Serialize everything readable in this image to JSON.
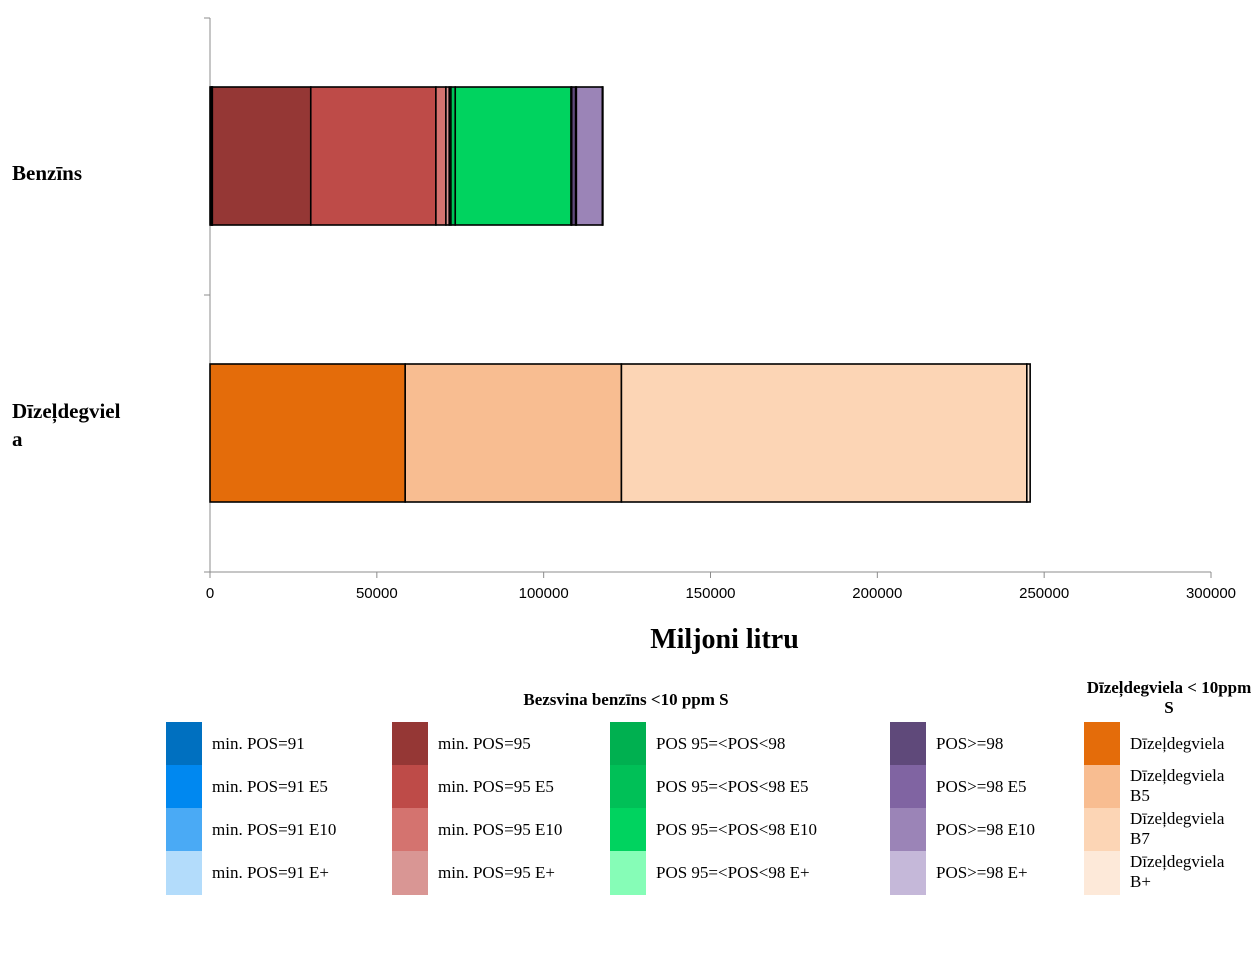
{
  "chart_data": {
    "type": "bar",
    "orientation": "horizontal",
    "stacked": true,
    "categories": [
      "Benzīns",
      "Dīzeļdegviela"
    ],
    "xlabel": "Miljoni litru",
    "xlim": [
      0,
      300000
    ],
    "xticks": [
      0,
      50000,
      100000,
      150000,
      200000,
      250000,
      300000
    ],
    "series": [
      {
        "name": "min. POS=91",
        "color": "#0070c0",
        "values": [
          300,
          0
        ]
      },
      {
        "name": "min. POS=91 E5",
        "color": "#0088f0",
        "values": [
          200,
          0
        ]
      },
      {
        "name": "min. POS=91 E10",
        "color": "#4aaaf5",
        "values": [
          100,
          0
        ]
      },
      {
        "name": "min. POS=91 E+",
        "color": "#b3dcfb",
        "values": [
          100,
          0
        ]
      },
      {
        "name": "min. POS=95",
        "color": "#953735",
        "values": [
          29500,
          0
        ]
      },
      {
        "name": "min. POS=95 E5",
        "color": "#be4b48",
        "values": [
          37500,
          0
        ]
      },
      {
        "name": "min. POS=95 E10",
        "color": "#d4736f",
        "values": [
          3000,
          0
        ]
      },
      {
        "name": "min. POS=95 E+",
        "color": "#d99694",
        "values": [
          1000,
          0
        ]
      },
      {
        "name": "POS 95=<POS<98",
        "color": "#00b050",
        "values": [
          500,
          0
        ]
      },
      {
        "name": "POS 95=<POS<98 E5",
        "color": "#00c057",
        "values": [
          1300,
          0
        ]
      },
      {
        "name": "POS 95=<POS<98 E10",
        "color": "#00d35f",
        "values": [
          34700,
          0
        ]
      },
      {
        "name": "POS 95=<POS<98 E+",
        "color": "#86fdb7",
        "values": [
          200,
          0
        ]
      },
      {
        "name": "POS>=98",
        "color": "#5f497a",
        "values": [
          1200,
          0
        ]
      },
      {
        "name": "POS>=98 E5",
        "color": "#8064a2",
        "values": [
          200,
          0
        ]
      },
      {
        "name": "POS>=98 E10",
        "color": "#9b84b7",
        "values": [
          7800,
          0
        ]
      },
      {
        "name": "POS>=98 E+",
        "color": "#c5b8d9",
        "values": [
          100,
          0
        ]
      },
      {
        "name": "Dīzeļdegviela",
        "color": "#e46c0a",
        "values": [
          0,
          58500
        ]
      },
      {
        "name": "Dīzeļdegviela B5",
        "color": "#f8bd91",
        "values": [
          0,
          64800
        ]
      },
      {
        "name": "Dīzeļdegviela B7",
        "color": "#fcd5b5",
        "values": [
          0,
          121500
        ]
      },
      {
        "name": "Dīzeļdegviela B+",
        "color": "#fde9d9",
        "values": [
          0,
          1000
        ]
      }
    ],
    "legend_groups": [
      {
        "title": "Bezsvina benzīns <10 ppm S"
      },
      {
        "title": "Dīzeļdegviela < 10ppm S"
      }
    ]
  }
}
